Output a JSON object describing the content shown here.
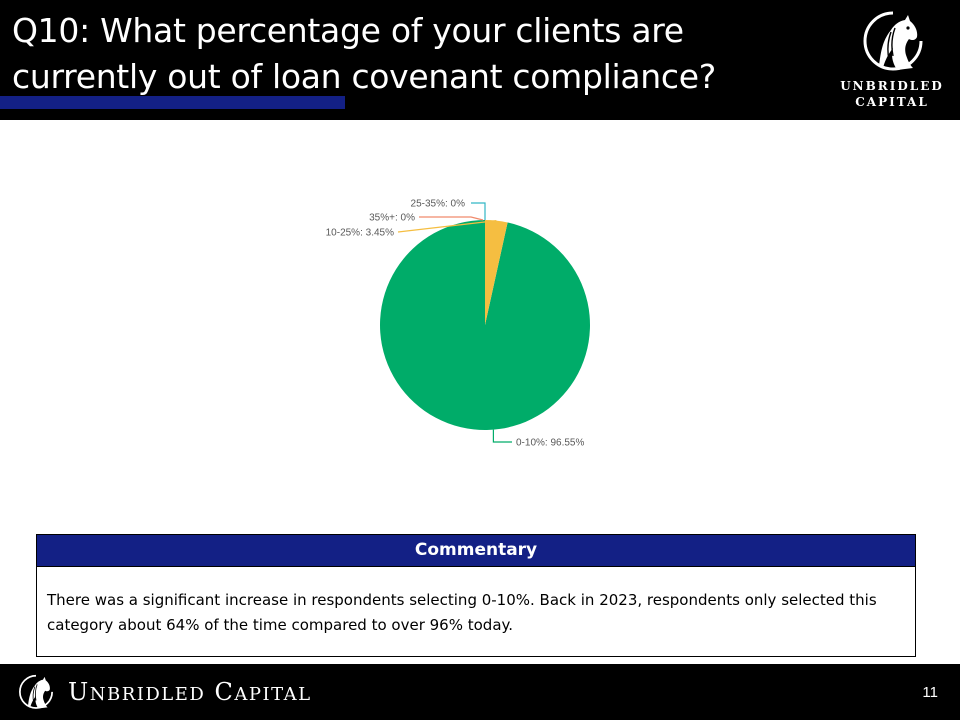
{
  "header": {
    "title_line1": "Q10: What percentage of your clients are",
    "title_line2": "currently out of loan covenant compliance?",
    "accent_color": "#132085",
    "logo": {
      "icon": "horse-head-icon",
      "line1": "UNBRIDLED",
      "line2": "CAPITAL"
    }
  },
  "chart_data": {
    "type": "pie",
    "title": "",
    "categories": [
      "0-10%",
      "10-25%",
      "25-35%",
      "35%+"
    ],
    "values": [
      96.55,
      3.45,
      0,
      0
    ],
    "colors": [
      "#00AC69",
      "#F5BE41",
      "#31B6C5",
      "#F08A6C"
    ],
    "labels": [
      "0-10%: 96.55%",
      "10-25%: 3.45%",
      "25-35%: 0%",
      "35%+: 0%"
    ],
    "unit": "%"
  },
  "commentary": {
    "heading": "Commentary",
    "text": "There was a significant increase in respondents selecting 0-10%. Back in 2023, respondents only selected this category about 64% of the time compared to over 96% today."
  },
  "footer": {
    "icon": "horse-head-icon",
    "brand_first_initial": "U",
    "brand_first_rest": "NBRIDLED",
    "brand_second_initial": "C",
    "brand_second_rest": "APITAL",
    "page_number": "11"
  }
}
